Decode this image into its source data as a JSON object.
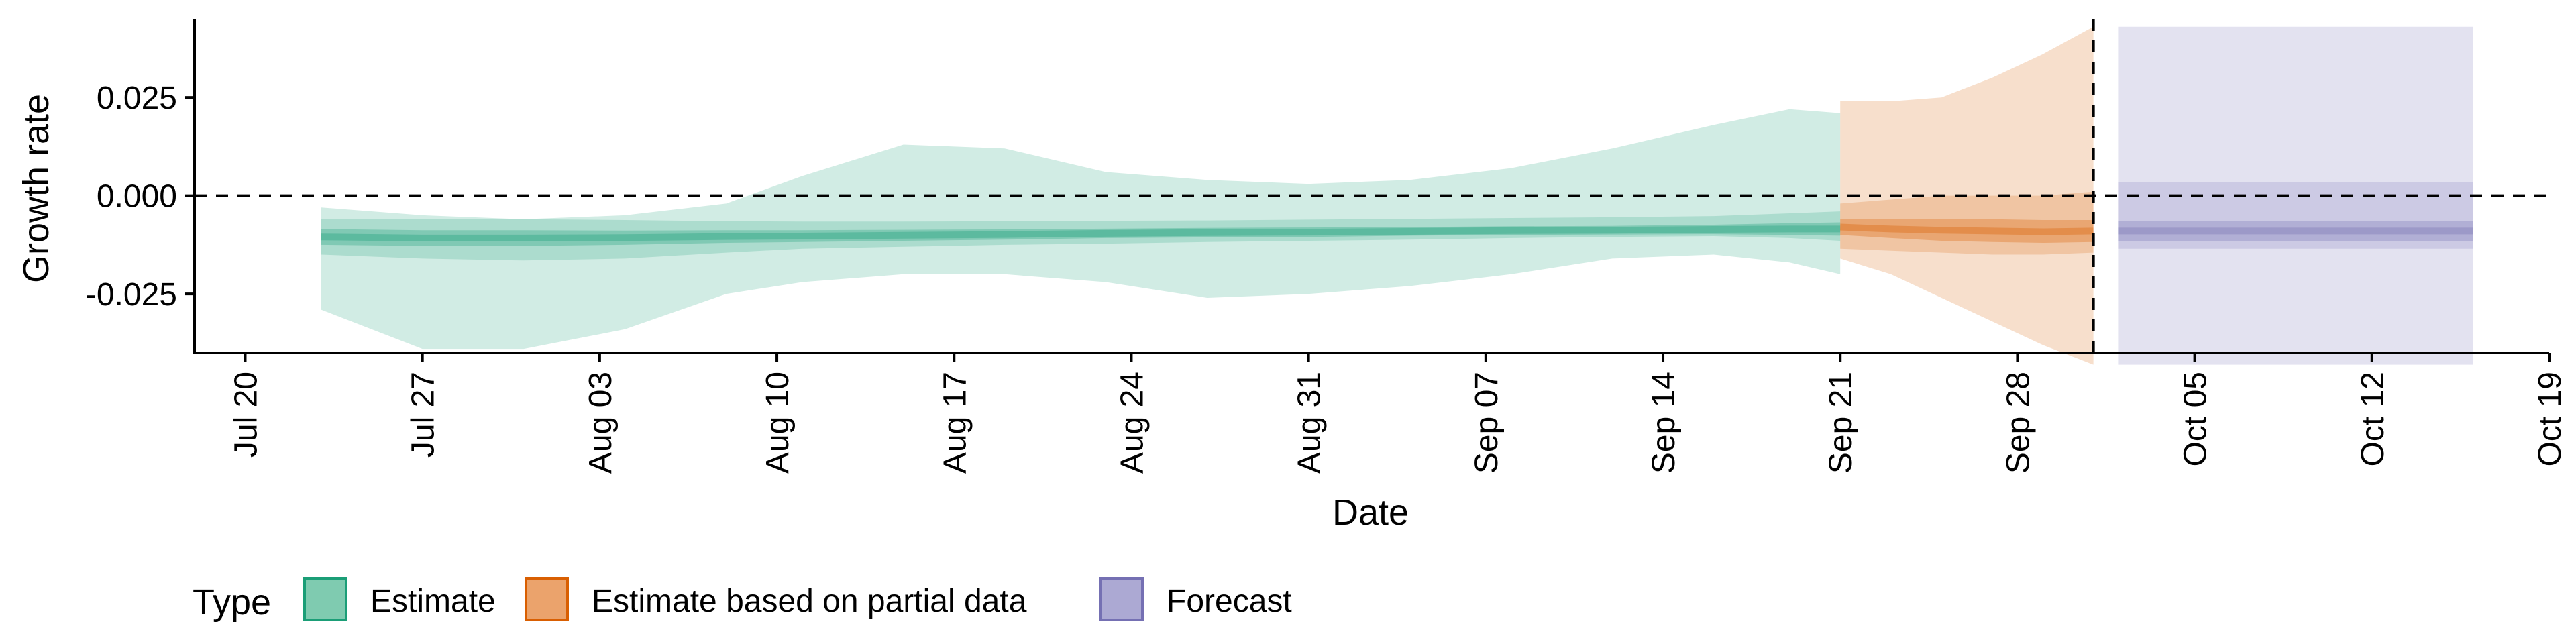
{
  "chart_data": {
    "type": "area",
    "title": "",
    "xlabel": "Date",
    "ylabel": "Growth rate",
    "ylim": [
      -0.04,
      0.045
    ],
    "xlim": [
      "2020-07-18",
      "2020-10-19"
    ],
    "y_ticks": [
      -0.025,
      0.0,
      0.025
    ],
    "y_tick_labels": [
      "-0.025",
      "0.000",
      "0.025"
    ],
    "x_ticks": [
      "2020-07-20",
      "2020-07-27",
      "2020-08-03",
      "2020-08-10",
      "2020-08-17",
      "2020-08-24",
      "2020-08-31",
      "2020-09-07",
      "2020-09-14",
      "2020-09-21",
      "2020-09-28",
      "2020-10-05",
      "2020-10-12",
      "2020-10-19"
    ],
    "x_tick_labels": [
      "Jul 20",
      "Jul 27",
      "Aug 03",
      "Aug 10",
      "Aug 17",
      "Aug 24",
      "Aug 31",
      "Sep 07",
      "Sep 14",
      "Sep 21",
      "Sep 28",
      "Oct 05",
      "Oct 12",
      "Oct 19"
    ],
    "hline_y": 0.0,
    "vline_x": "2020-10-01",
    "grid": false,
    "legend": {
      "title": "Type",
      "position": "bottom-left",
      "entries": [
        {
          "label": "Estimate",
          "fill": "#7fcbb0",
          "stroke": "#1b9e77"
        },
        {
          "label": "Estimate based on partial data",
          "fill": "#eba36c",
          "stroke": "#d95f02"
        },
        {
          "label": "Forecast",
          "fill": "#aca9d3",
          "stroke": "#7570b3"
        }
      ]
    },
    "series": [
      {
        "name": "Estimate",
        "color": "#1b9e77",
        "x": [
          "2020-07-23",
          "2020-07-27",
          "2020-07-31",
          "2020-08-04",
          "2020-08-08",
          "2020-08-11",
          "2020-08-15",
          "2020-08-19",
          "2020-08-23",
          "2020-08-27",
          "2020-08-31",
          "2020-09-04",
          "2020-09-08",
          "2020-09-12",
          "2020-09-16",
          "2020-09-19",
          "2020-09-21"
        ],
        "median": [
          -0.0105,
          -0.0108,
          -0.0108,
          -0.0107,
          -0.0104,
          -0.0103,
          -0.0101,
          -0.0099,
          -0.0096,
          -0.0094,
          -0.0093,
          -0.0091,
          -0.0089,
          -0.0088,
          -0.0086,
          -0.0085,
          -0.0085
        ],
        "lower_50": [
          -0.0125,
          -0.0128,
          -0.0128,
          -0.0125,
          -0.012,
          -0.0118,
          -0.0115,
          -0.0112,
          -0.0108,
          -0.0106,
          -0.0105,
          -0.0102,
          -0.01,
          -0.0099,
          -0.0098,
          -0.01,
          -0.0102
        ],
        "upper_50": [
          -0.0085,
          -0.0088,
          -0.0088,
          -0.0089,
          -0.0088,
          -0.0088,
          -0.0087,
          -0.0086,
          -0.0084,
          -0.0082,
          -0.0081,
          -0.008,
          -0.0078,
          -0.0077,
          -0.0074,
          -0.007,
          -0.0068
        ],
        "lower_90": [
          -0.015,
          -0.016,
          -0.0165,
          -0.016,
          -0.0145,
          -0.0135,
          -0.013,
          -0.0125,
          -0.0122,
          -0.0118,
          -0.0115,
          -0.0112,
          -0.0108,
          -0.0105,
          -0.0103,
          -0.0108,
          -0.0115
        ],
        "upper_90": [
          -0.006,
          -0.006,
          -0.006,
          -0.0062,
          -0.0065,
          -0.0066,
          -0.0066,
          -0.0065,
          -0.0064,
          -0.0063,
          -0.0061,
          -0.0059,
          -0.0057,
          -0.0055,
          -0.0052,
          -0.0045,
          -0.004
        ],
        "lower_outer": [
          -0.029,
          -0.039,
          -0.039,
          -0.034,
          -0.025,
          -0.022,
          -0.02,
          -0.02,
          -0.022,
          -0.026,
          -0.025,
          -0.023,
          -0.02,
          -0.016,
          -0.015,
          -0.017,
          -0.02
        ],
        "upper_outer": [
          -0.003,
          -0.005,
          -0.006,
          -0.005,
          -0.002,
          0.005,
          0.013,
          0.012,
          0.006,
          0.004,
          0.003,
          0.004,
          0.007,
          0.012,
          0.018,
          0.022,
          0.021
        ]
      },
      {
        "name": "Estimate based on partial data",
        "color": "#d95f02",
        "x": [
          "2020-09-21",
          "2020-09-23",
          "2020-09-25",
          "2020-09-27",
          "2020-09-29",
          "2020-10-01"
        ],
        "median": [
          -0.008,
          -0.0085,
          -0.0088,
          -0.009,
          -0.0092,
          -0.009
        ],
        "lower_50": [
          -0.01,
          -0.0108,
          -0.0115,
          -0.0118,
          -0.012,
          -0.0118
        ],
        "upper_50": [
          -0.006,
          -0.006,
          -0.006,
          -0.006,
          -0.0062,
          -0.0062
        ],
        "lower_90": [
          -0.0135,
          -0.014,
          -0.0145,
          -0.015,
          -0.015,
          -0.0145
        ],
        "upper_90": [
          -0.002,
          -0.001,
          0.0,
          0.0,
          0.0,
          0.001
        ],
        "lower_outer": [
          -0.016,
          -0.02,
          -0.026,
          -0.032,
          -0.038,
          -0.043
        ],
        "upper_outer": [
          0.024,
          0.024,
          0.025,
          0.03,
          0.036,
          0.043
        ]
      },
      {
        "name": "Forecast",
        "color": "#7570b3",
        "x": [
          "2020-10-02",
          "2020-10-16"
        ],
        "median": [
          -0.009,
          -0.009
        ],
        "lower_50": [
          -0.0115,
          -0.0115
        ],
        "upper_50": [
          -0.0065,
          -0.0065
        ],
        "lower_90": [
          -0.0135,
          -0.0135
        ],
        "upper_90": [
          0.0035,
          0.0035
        ],
        "lower_outer": [
          -0.043,
          -0.043
        ],
        "upper_outer": [
          0.043,
          0.043
        ]
      }
    ]
  }
}
